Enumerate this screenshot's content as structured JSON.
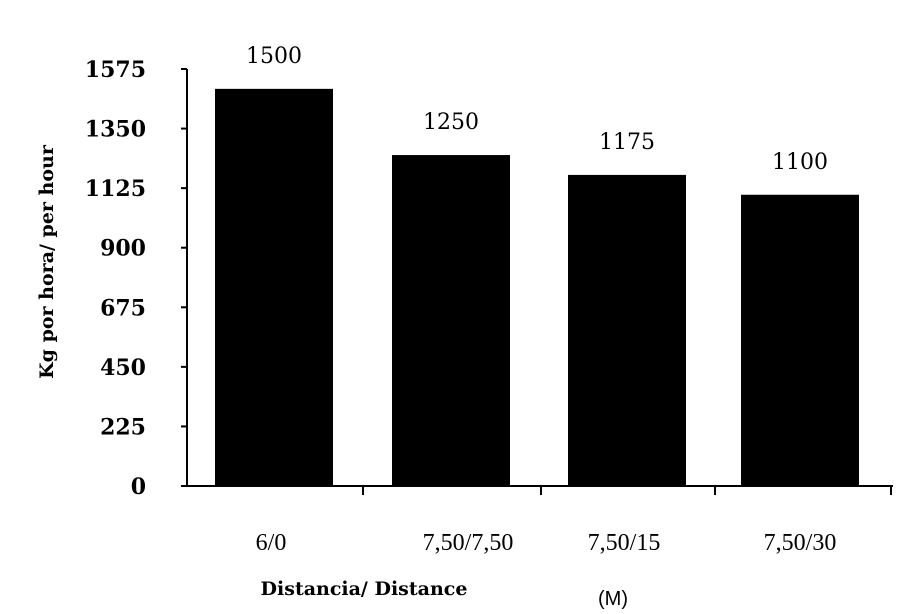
{
  "chart_data": {
    "type": "bar",
    "categories": [
      "6/0",
      "7,50/7,50",
      "7,50/15",
      "7,50/30"
    ],
    "values": [
      1500,
      1250,
      1175,
      1100
    ],
    "data_labels": [
      "1500",
      "1250",
      "1175",
      "1100"
    ],
    "title": "",
    "xlabel": "Distancia/ Distance",
    "xunit": "(M)",
    "ylabel": "Kg por hora/ per hour",
    "ylim": [
      0,
      1575
    ],
    "yticks": [
      0,
      225,
      450,
      675,
      900,
      1125,
      1350,
      1575
    ],
    "ytick_labels": [
      "0",
      "225",
      "450",
      "675",
      "900",
      "1125",
      "1350",
      "1575"
    ],
    "grid": false,
    "legend": "none",
    "bar_color": "#000000"
  }
}
